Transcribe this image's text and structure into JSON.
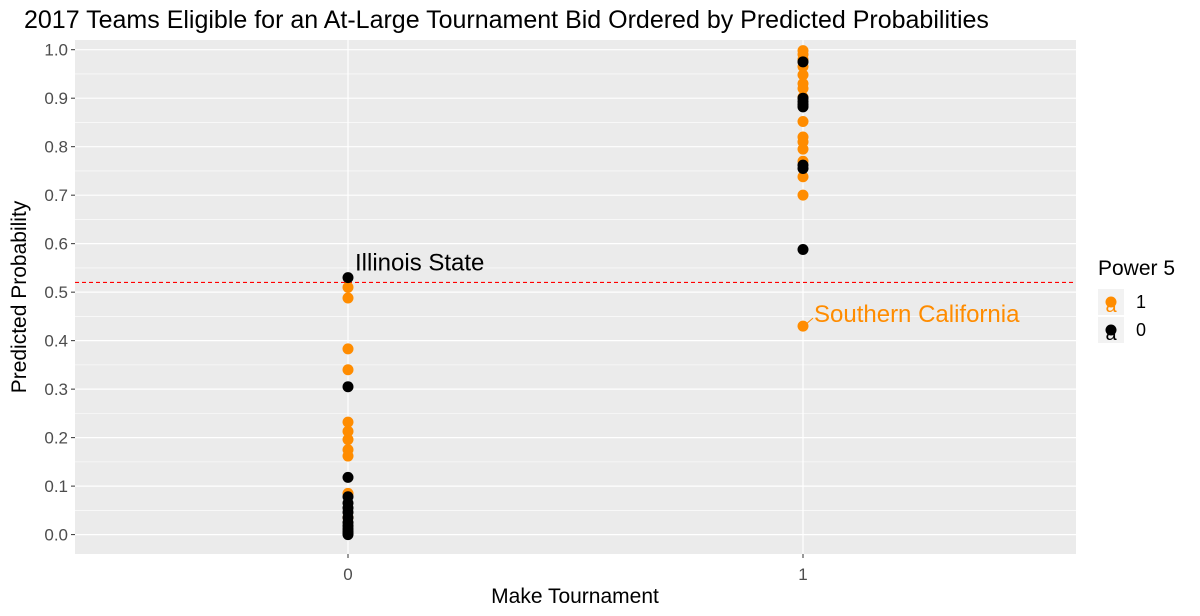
{
  "chart_data": {
    "type": "scatter",
    "title": "2017 Teams Eligible for an At-Large Tournament Bid Ordered by Predicted Probabilities",
    "xlabel": "Make Tournament",
    "ylabel": "Predicted Probability",
    "categories": [
      "0",
      "1"
    ],
    "y_ticks": [
      "0.0",
      "0.1",
      "0.2",
      "0.3",
      "0.4",
      "0.5",
      "0.6",
      "0.7",
      "0.8",
      "0.9",
      "1.0"
    ],
    "ylim": [
      -0.04,
      1.02
    ],
    "threshold": 0.52,
    "threshold_color": "#ff0000",
    "grid": true,
    "legend": {
      "title": "Power 5",
      "position": "right",
      "entries": [
        {
          "label": "1",
          "color": "#ff8c00"
        },
        {
          "label": "0",
          "color": "#000000"
        }
      ]
    },
    "series": [
      {
        "power5": "1",
        "color": "#ff8c00",
        "points": [
          {
            "x": "0",
            "y": 0.51
          },
          {
            "x": "0",
            "y": 0.488
          },
          {
            "x": "0",
            "y": 0.383
          },
          {
            "x": "0",
            "y": 0.34
          },
          {
            "x": "0",
            "y": 0.232
          },
          {
            "x": "0",
            "y": 0.213
          },
          {
            "x": "0",
            "y": 0.196
          },
          {
            "x": "0",
            "y": 0.175
          },
          {
            "x": "0",
            "y": 0.162
          },
          {
            "x": "0",
            "y": 0.085
          },
          {
            "x": "0",
            "y": 0.035
          },
          {
            "x": "1",
            "y": 0.998
          },
          {
            "x": "1",
            "y": 0.99
          },
          {
            "x": "1",
            "y": 0.98
          },
          {
            "x": "1",
            "y": 0.965
          },
          {
            "x": "1",
            "y": 0.948
          },
          {
            "x": "1",
            "y": 0.93
          },
          {
            "x": "1",
            "y": 0.92
          },
          {
            "x": "1",
            "y": 0.902
          },
          {
            "x": "1",
            "y": 0.852
          },
          {
            "x": "1",
            "y": 0.82
          },
          {
            "x": "1",
            "y": 0.81
          },
          {
            "x": "1",
            "y": 0.795
          },
          {
            "x": "1",
            "y": 0.77
          },
          {
            "x": "1",
            "y": 0.738
          },
          {
            "x": "1",
            "y": 0.7
          },
          {
            "x": "1",
            "y": 0.43
          }
        ]
      },
      {
        "power5": "0",
        "color": "#000000",
        "points": [
          {
            "x": "0",
            "y": 0.53
          },
          {
            "x": "0",
            "y": 0.305
          },
          {
            "x": "0",
            "y": 0.118
          },
          {
            "x": "0",
            "y": 0.078
          },
          {
            "x": "0",
            "y": 0.065
          },
          {
            "x": "0",
            "y": 0.055
          },
          {
            "x": "0",
            "y": 0.046
          },
          {
            "x": "0",
            "y": 0.035
          },
          {
            "x": "0",
            "y": 0.025
          },
          {
            "x": "0",
            "y": 0.018
          },
          {
            "x": "0",
            "y": 0.012
          },
          {
            "x": "0",
            "y": 0.007
          },
          {
            "x": "0",
            "y": 0.003
          },
          {
            "x": "0",
            "y": 0.0
          },
          {
            "x": "1",
            "y": 0.975
          },
          {
            "x": "1",
            "y": 0.9
          },
          {
            "x": "1",
            "y": 0.893
          },
          {
            "x": "1",
            "y": 0.887
          },
          {
            "x": "1",
            "y": 0.882
          },
          {
            "x": "1",
            "y": 0.762
          },
          {
            "x": "1",
            "y": 0.755
          },
          {
            "x": "1",
            "y": 0.588
          }
        ]
      }
    ],
    "annotations": [
      {
        "text": "Illinois State",
        "x": "0",
        "y": 0.53,
        "color": "#000000"
      },
      {
        "text": "Southern California",
        "x": "1",
        "y": 0.43,
        "color": "#ff8c00"
      }
    ]
  }
}
